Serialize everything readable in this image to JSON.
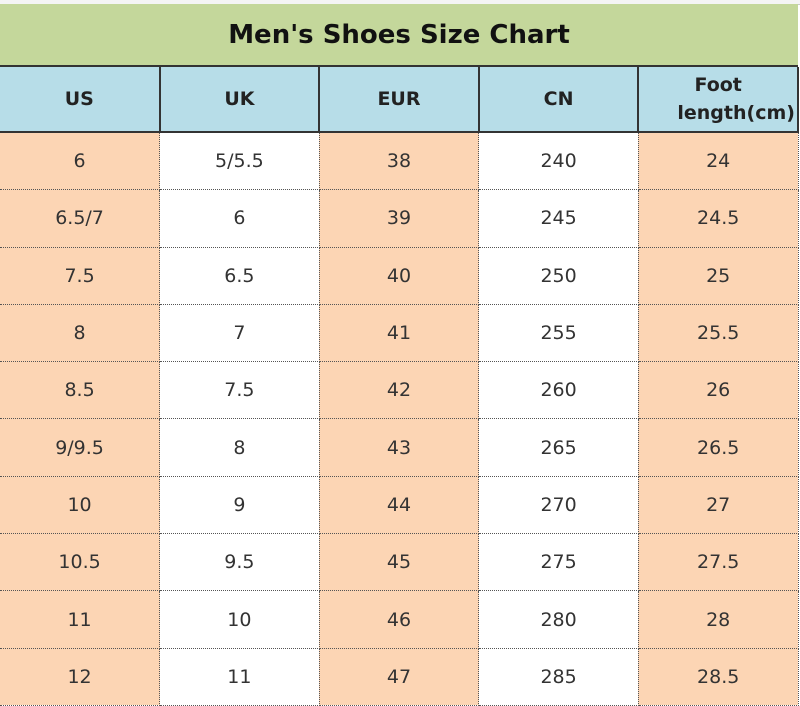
{
  "title": "Men's Shoes Size Chart",
  "colors": {
    "title_bg": "#c4d79b",
    "header_bg": "#b7dde8",
    "peach": "#fcd5b4",
    "white": "#ffffff"
  },
  "headers": [
    "US",
    "UK",
    "EUR",
    "CN",
    "Foot length(cm)"
  ],
  "rows": [
    [
      "6",
      "5/5.5",
      "38",
      "240",
      "24"
    ],
    [
      "6.5/7",
      "6",
      "39",
      "245",
      "24.5"
    ],
    [
      "7.5",
      "6.5",
      "40",
      "250",
      "25"
    ],
    [
      "8",
      "7",
      "41",
      "255",
      "25.5"
    ],
    [
      "8.5",
      "7.5",
      "42",
      "260",
      "26"
    ],
    [
      "9/9.5",
      "8",
      "43",
      "265",
      "26.5"
    ],
    [
      "10",
      "9",
      "44",
      "270",
      "27"
    ],
    [
      "10.5",
      "9.5",
      "45",
      "275",
      "27.5"
    ],
    [
      "11",
      "10",
      "46",
      "280",
      "28"
    ],
    [
      "12",
      "11",
      "47",
      "285",
      "28.5"
    ]
  ]
}
